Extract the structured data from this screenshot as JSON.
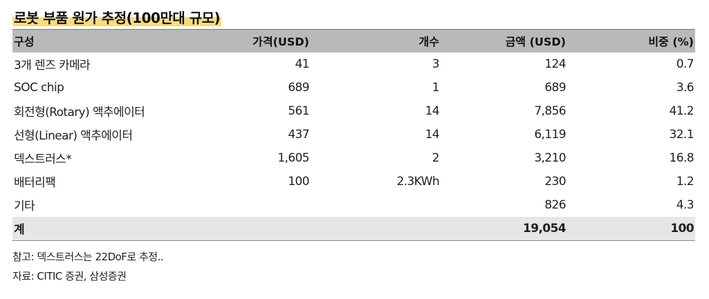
{
  "title": "로봇 부품 원가 추정(100만대 규모)",
  "table": {
    "headers": [
      "구성",
      "가격(USD)",
      "개수",
      "금액 (USD)",
      "비중 (%)"
    ],
    "rows": [
      [
        "3개 렌즈 카메라",
        "41",
        "3",
        "124",
        "0.7"
      ],
      [
        "SOC chip",
        "689",
        "1",
        "689",
        "3.6"
      ],
      [
        "회전형(Rotary) 액추에이터",
        "561",
        "14",
        "7,856",
        "41.2"
      ],
      [
        "선형(Linear) 액추에이터",
        "437",
        "14",
        "6,119",
        "32.1"
      ],
      [
        "덱스트러스*",
        "1,605",
        "2",
        "3,210",
        "16.8"
      ],
      [
        "배터리팩",
        "100",
        "2.3KWh",
        "230",
        "1.2"
      ],
      [
        "기타",
        "",
        "",
        "826",
        "4.3"
      ]
    ],
    "total": [
      "계",
      "",
      "",
      "19,054",
      "100"
    ]
  },
  "notes": {
    "note": "참고: 덱스트러스는 22DoF로 추정..",
    "source": "자료: CITIC 증권, 삼성증권"
  }
}
